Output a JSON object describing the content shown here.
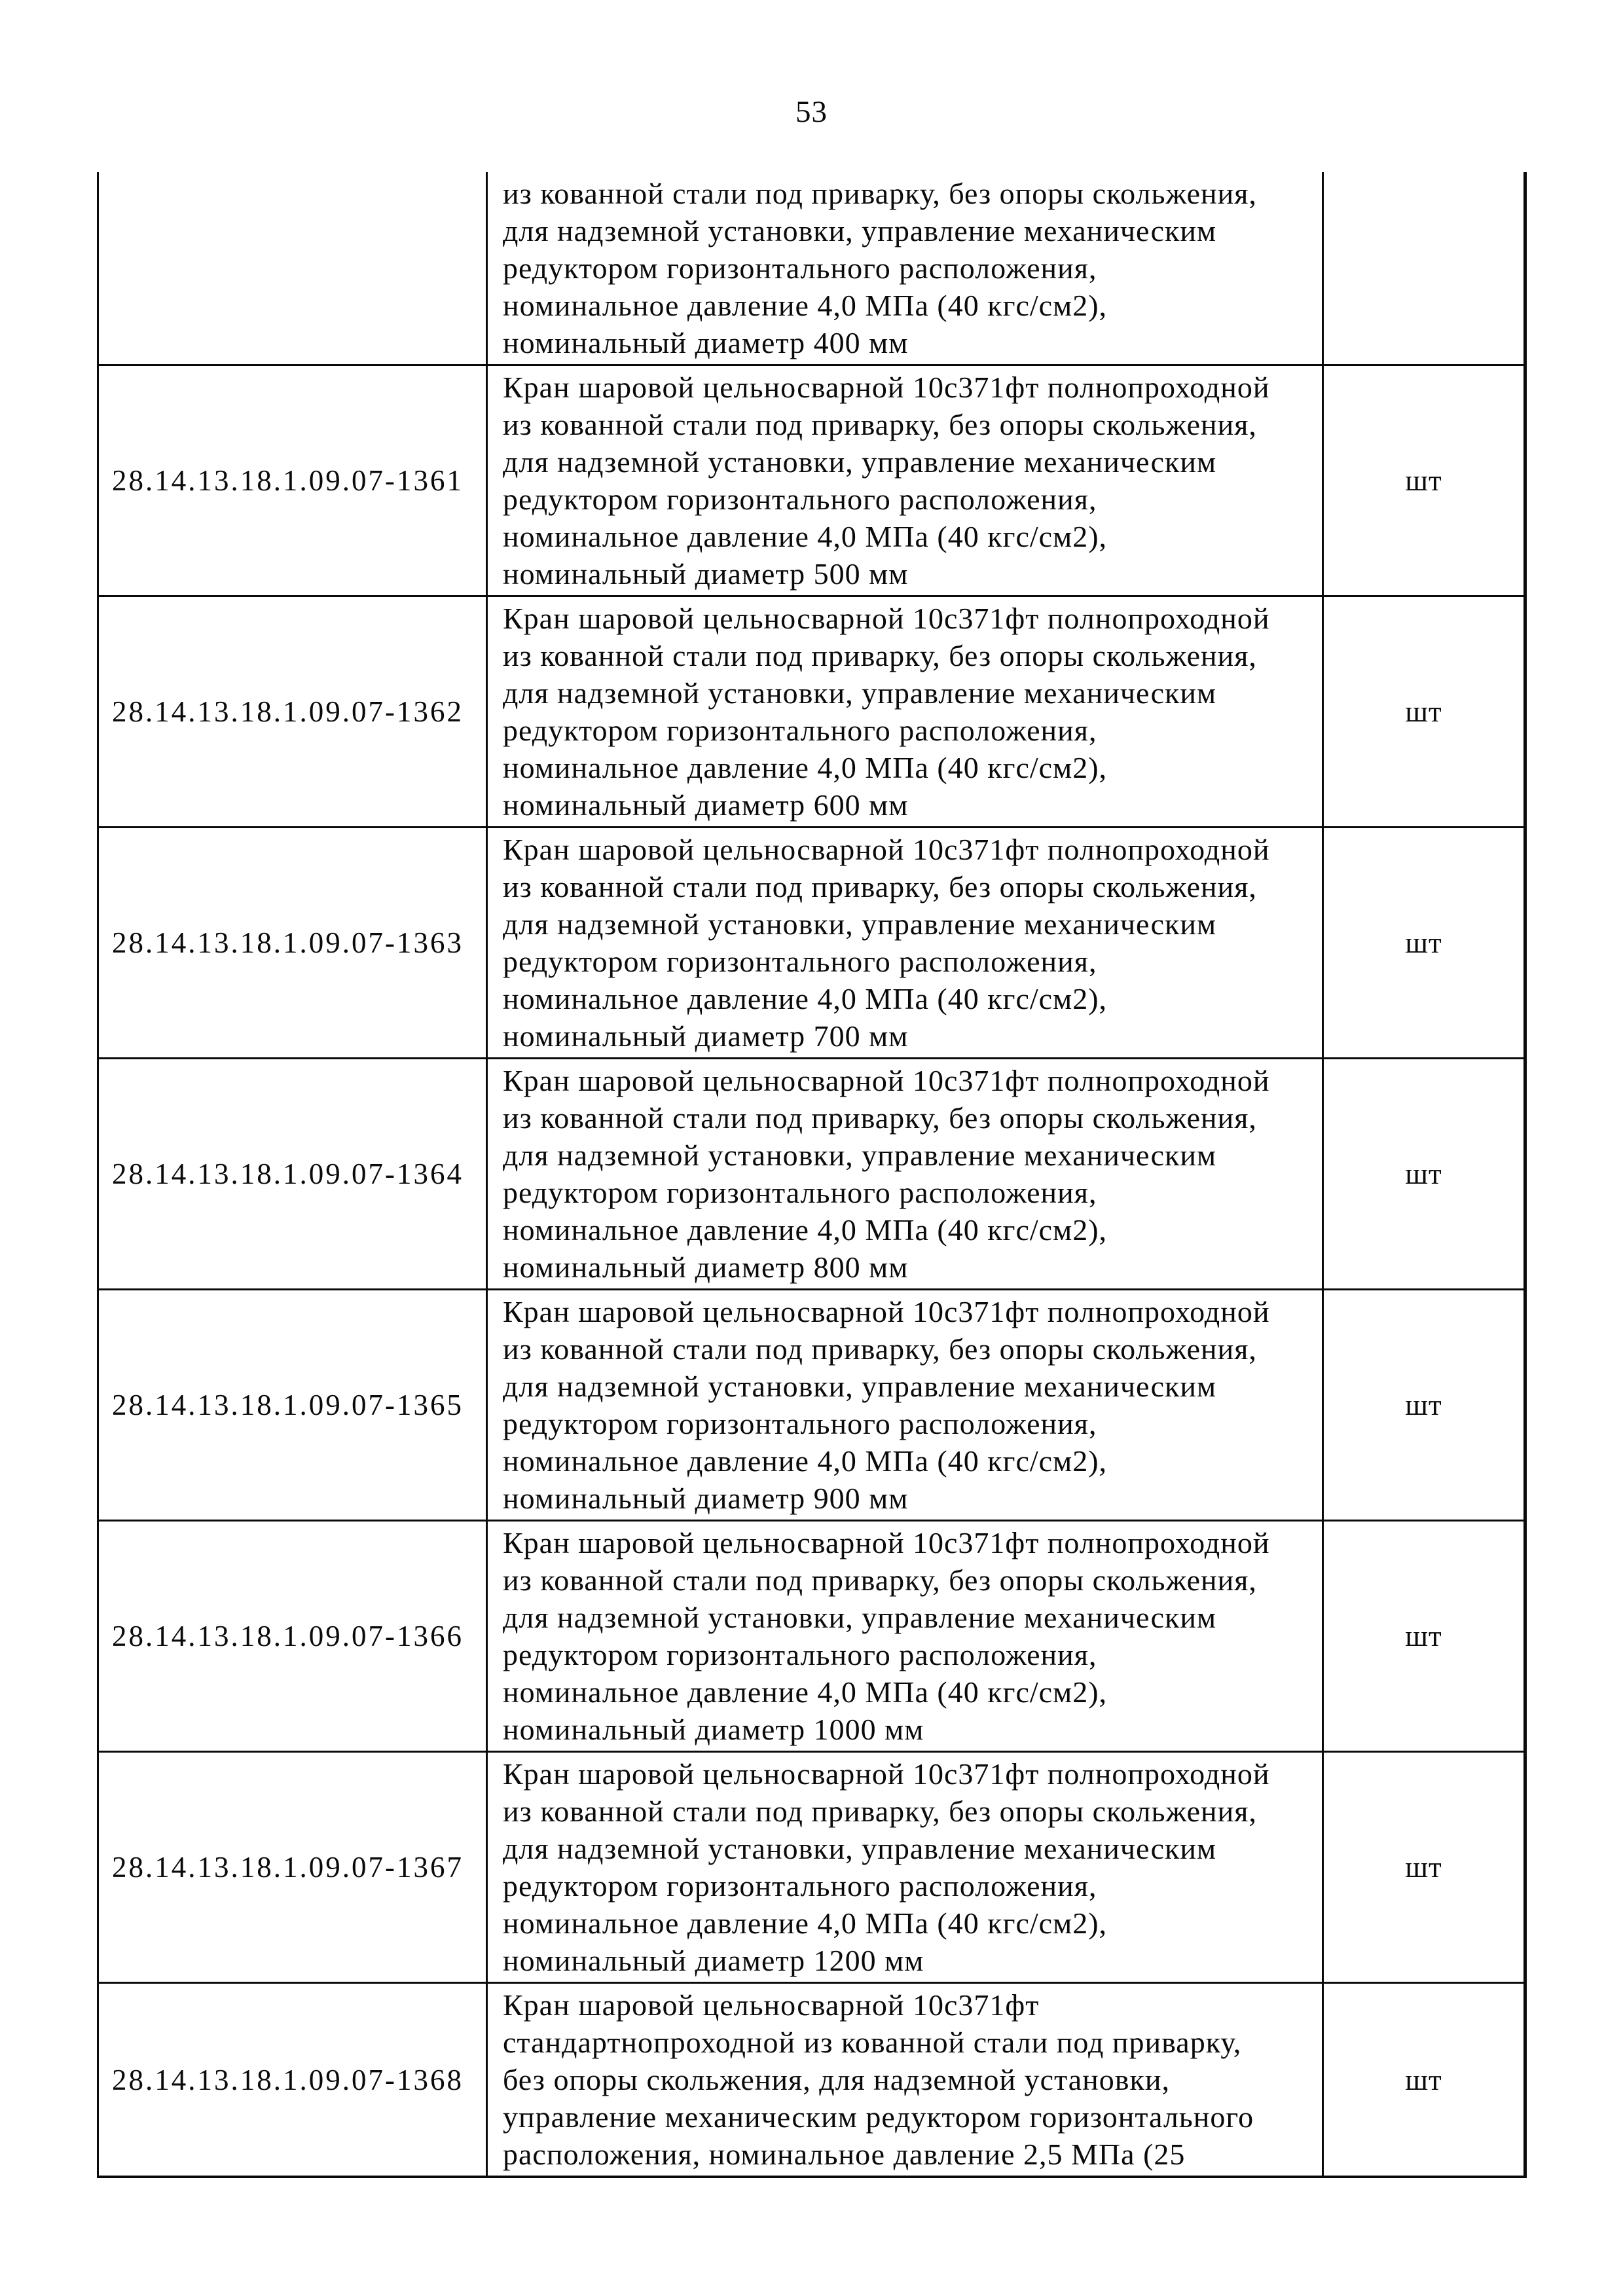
{
  "page": {
    "number": "53"
  },
  "table": {
    "rows": [
      {
        "code": "",
        "unit": "",
        "desc_lines": [
          "из кованной стали под приварку, без опоры скольжения,",
          "для надземной установки, управление механическим",
          "редуктором горизонтального расположения,",
          "номинальное давление 4,0 МПа (40 кгс/см2),",
          "номинальный диаметр 400 мм"
        ]
      },
      {
        "code": "28.14.13.18.1.09.07-1361",
        "unit": "шт",
        "desc_lines": [
          "Кран шаровой цельносварной 10с371фт полнопроходной",
          "из кованной стали под приварку, без опоры скольжения,",
          "для надземной установки, управление механическим",
          "редуктором горизонтального расположения,",
          "номинальное давление 4,0 МПа (40 кгс/см2),",
          "номинальный диаметр 500 мм"
        ]
      },
      {
        "code": "28.14.13.18.1.09.07-1362",
        "unit": "шт",
        "desc_lines": [
          "Кран шаровой цельносварной 10с371фт полнопроходной",
          "из кованной стали под приварку, без опоры скольжения,",
          "для надземной установки, управление механическим",
          "редуктором горизонтального расположения,",
          "номинальное давление 4,0 МПа (40 кгс/см2),",
          "номинальный диаметр 600 мм"
        ]
      },
      {
        "code": "28.14.13.18.1.09.07-1363",
        "unit": "шт",
        "desc_lines": [
          "Кран шаровой цельносварной 10с371фт полнопроходной",
          "из кованной стали под приварку, без опоры скольжения,",
          "для надземной установки, управление механическим",
          "редуктором горизонтального расположения,",
          "номинальное давление 4,0 МПа (40 кгс/см2),",
          "номинальный диаметр 700 мм"
        ]
      },
      {
        "code": "28.14.13.18.1.09.07-1364",
        "unit": "шт",
        "desc_lines": [
          "Кран шаровой цельносварной 10с371фт полнопроходной",
          "из кованной стали под приварку, без опоры скольжения,",
          "для надземной установки, управление механическим",
          "редуктором горизонтального расположения,",
          "номинальное давление 4,0 МПа (40 кгс/см2),",
          "номинальный диаметр 800 мм"
        ]
      },
      {
        "code": "28.14.13.18.1.09.07-1365",
        "unit": "шт",
        "desc_lines": [
          "Кран шаровой цельносварной 10с371фт полнопроходной",
          "из кованной стали под приварку, без опоры скольжения,",
          "для надземной установки, управление механическим",
          "редуктором горизонтального расположения,",
          "номинальное давление 4,0 МПа (40 кгс/см2),",
          "номинальный диаметр 900 мм"
        ]
      },
      {
        "code": "28.14.13.18.1.09.07-1366",
        "unit": "шт",
        "desc_lines": [
          "Кран шаровой цельносварной 10с371фт полнопроходной",
          "из кованной стали под приварку, без опоры скольжения,",
          "для надземной установки, управление механическим",
          "редуктором горизонтального расположения,",
          "номинальное давление 4,0 МПа (40 кгс/см2),",
          "номинальный диаметр 1000 мм"
        ]
      },
      {
        "code": "28.14.13.18.1.09.07-1367",
        "unit": "шт",
        "desc_lines": [
          "Кран шаровой цельносварной 10с371фт полнопроходной",
          "из кованной стали под приварку, без опоры скольжения,",
          "для надземной установки, управление механическим",
          "редуктором горизонтального расположения,",
          "номинальное давление 4,0 МПа (40 кгс/см2),",
          "номинальный диаметр 1200 мм"
        ]
      },
      {
        "code": "28.14.13.18.1.09.07-1368",
        "unit": "шт",
        "desc_lines": [
          "Кран шаровой цельносварной 10с371фт",
          "стандартнопроходной из кованной стали под приварку,",
          "без опоры скольжения, для надземной установки,",
          "управление механическим редуктором горизонтального",
          "расположения, номинальное давление 2,5 МПа (25"
        ]
      }
    ]
  }
}
